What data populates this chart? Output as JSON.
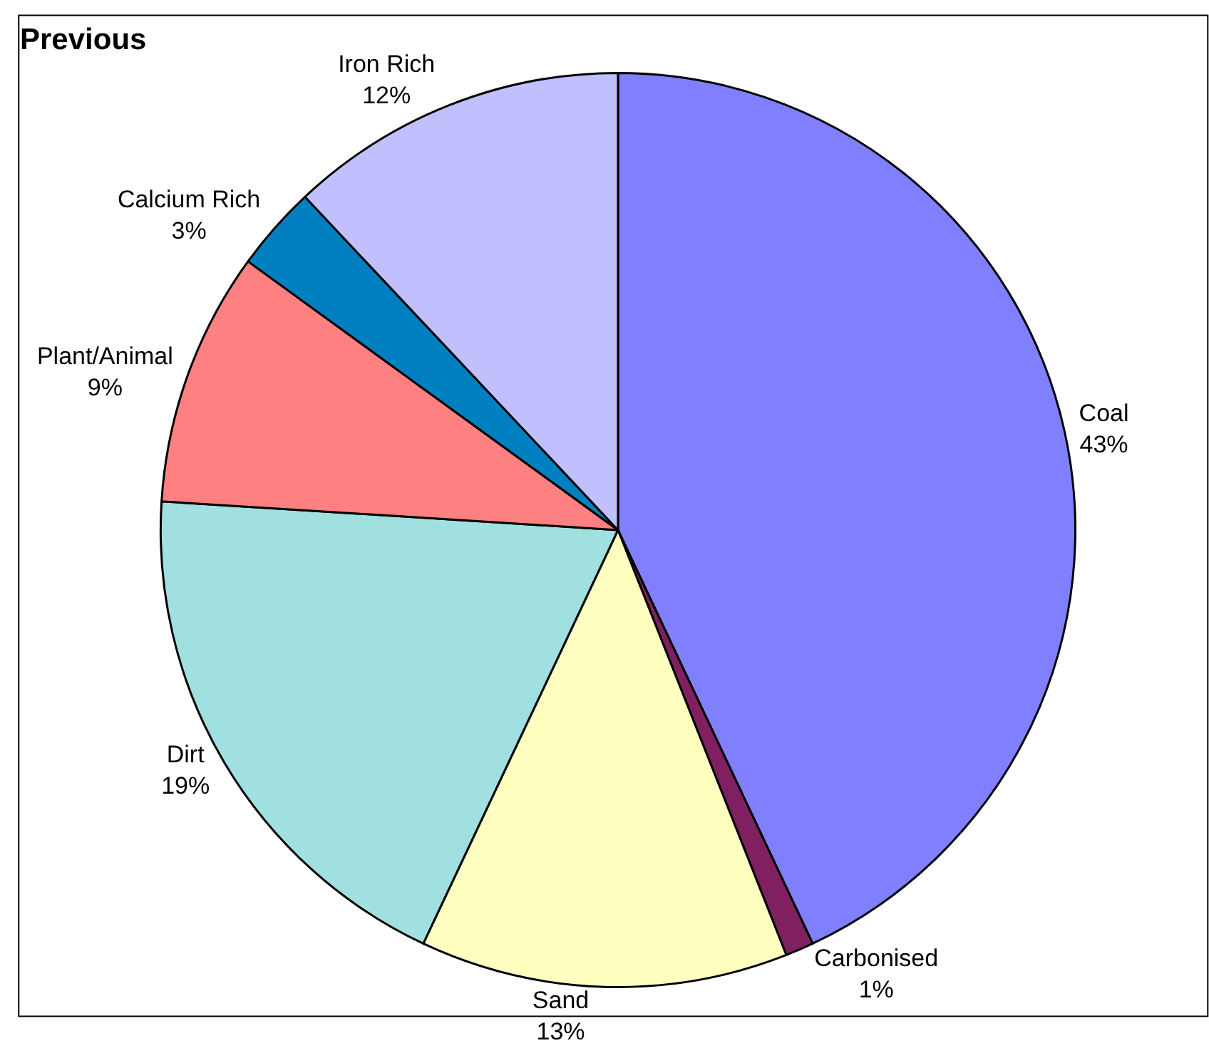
{
  "chart_data": {
    "type": "pie",
    "title": "Previous",
    "categories": [
      "Coal",
      "Carbonised",
      "Sand",
      "Dirt",
      "Plant/Animal",
      "Calcium Rich",
      "Iron Rich"
    ],
    "values": [
      43,
      1,
      13,
      19,
      9,
      3,
      12
    ],
    "value_labels": [
      "43%",
      "1%",
      "13%",
      "19%",
      "9%",
      "3%",
      "12%"
    ],
    "colors": [
      "#8080ff",
      "#802060",
      "#ffffc0",
      "#a0e0e0",
      "#ff8080",
      "#0080c0",
      "#c0c0ff"
    ],
    "legend": false
  }
}
